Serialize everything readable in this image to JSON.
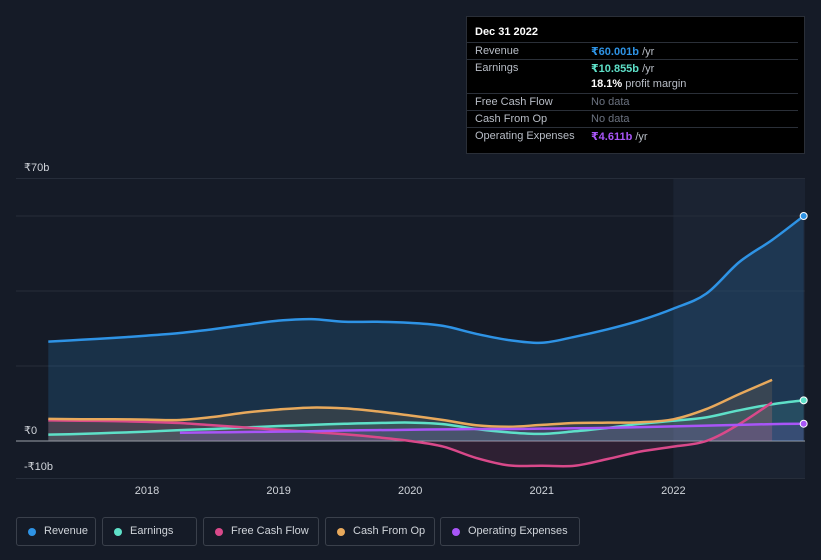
{
  "tooltip": {
    "date": "Dec 31 2022",
    "revenue": {
      "label": "Revenue",
      "value": "₹60.001b",
      "unit": "/yr",
      "color": "#2e93e5"
    },
    "earnings": {
      "label": "Earnings",
      "value": "₹10.855b",
      "unit": "/yr",
      "color": "#5ee0c8"
    },
    "margin": {
      "value": "18.1%",
      "text": "profit margin"
    },
    "fcf": {
      "label": "Free Cash Flow",
      "value": "No data"
    },
    "cfo": {
      "label": "Cash From Op",
      "value": "No data"
    },
    "opex": {
      "label": "Operating Expenses",
      "value": "₹4.611b",
      "unit": "/yr",
      "color": "#a855f7"
    }
  },
  "legend": [
    {
      "label": "Revenue",
      "color": "#2e93e5"
    },
    {
      "label": "Earnings",
      "color": "#5ee0c8"
    },
    {
      "label": "Free Cash Flow",
      "color": "#d9498a"
    },
    {
      "label": "Cash From Op",
      "color": "#e8a95c"
    },
    {
      "label": "Operating Expenses",
      "color": "#a855f7"
    }
  ],
  "chart_data": {
    "type": "line",
    "ylim": [
      -10,
      70
    ],
    "y_tick_labels": [
      {
        "label": "₹70b",
        "value": 70
      },
      {
        "label": "₹0",
        "value": 0
      },
      {
        "label": "-₹10b",
        "value": -10
      }
    ],
    "x_ticks": [
      2018,
      2019,
      2020,
      2021,
      2022
    ],
    "xlim": [
      2017.2,
      2023.0
    ],
    "highlight_start": 2022.0,
    "series": [
      {
        "name": "Revenue",
        "color": "#2e93e5",
        "area": true,
        "points": [
          [
            2017.25,
            26.5
          ],
          [
            2017.5,
            27
          ],
          [
            2017.75,
            27.5
          ],
          [
            2018.0,
            28.1
          ],
          [
            2018.25,
            28.8
          ],
          [
            2018.5,
            29.8
          ],
          [
            2018.75,
            31
          ],
          [
            2019.0,
            32.1
          ],
          [
            2019.25,
            32.5
          ],
          [
            2019.5,
            31.8
          ],
          [
            2019.75,
            31.8
          ],
          [
            2020.0,
            31.5
          ],
          [
            2020.25,
            30.7
          ],
          [
            2020.5,
            28.6
          ],
          [
            2020.75,
            26.9
          ],
          [
            2021.0,
            26.2
          ],
          [
            2021.25,
            27.8
          ],
          [
            2021.5,
            29.8
          ],
          [
            2021.75,
            32.2
          ],
          [
            2022.0,
            35.3
          ],
          [
            2022.25,
            39.3
          ],
          [
            2022.5,
            47.7
          ],
          [
            2022.75,
            53.6
          ],
          [
            2022.99,
            60.0
          ]
        ]
      },
      {
        "name": "Earnings",
        "color": "#5ee0c8",
        "points": [
          [
            2017.25,
            1.7
          ],
          [
            2017.5,
            1.9
          ],
          [
            2017.75,
            2.2
          ],
          [
            2018.0,
            2.5
          ],
          [
            2018.25,
            2.9
          ],
          [
            2018.5,
            3.2
          ],
          [
            2018.75,
            3.6
          ],
          [
            2019.0,
            4.0
          ],
          [
            2019.25,
            4.3
          ],
          [
            2019.5,
            4.6
          ],
          [
            2019.75,
            4.8
          ],
          [
            2020.0,
            4.9
          ],
          [
            2020.25,
            4.5
          ],
          [
            2020.5,
            3.2
          ],
          [
            2020.75,
            2.3
          ],
          [
            2021.0,
            1.9
          ],
          [
            2021.25,
            2.6
          ],
          [
            2021.5,
            3.5
          ],
          [
            2021.75,
            4.6
          ],
          [
            2022.0,
            5.4
          ],
          [
            2022.25,
            6.3
          ],
          [
            2022.5,
            8.2
          ],
          [
            2022.75,
            9.8
          ],
          [
            2022.99,
            10.85
          ]
        ]
      },
      {
        "name": "Free Cash Flow",
        "color": "#d9498a",
        "points": [
          [
            2017.25,
            5.5
          ],
          [
            2017.5,
            5.4
          ],
          [
            2017.75,
            5.3
          ],
          [
            2018.0,
            5.1
          ],
          [
            2018.25,
            4.8
          ],
          [
            2018.5,
            4.2
          ],
          [
            2018.75,
            3.6
          ],
          [
            2019.0,
            3.0
          ],
          [
            2019.25,
            2.4
          ],
          [
            2019.5,
            1.8
          ],
          [
            2019.75,
            1.0
          ],
          [
            2020.0,
            0.0
          ],
          [
            2020.25,
            -1.5
          ],
          [
            2020.5,
            -4.5
          ],
          [
            2020.75,
            -6.5
          ],
          [
            2021.0,
            -6.6
          ],
          [
            2021.25,
            -6.6
          ],
          [
            2021.5,
            -4.8
          ],
          [
            2021.75,
            -2.8
          ],
          [
            2022.0,
            -1.5
          ],
          [
            2022.25,
            0.0
          ],
          [
            2022.5,
            4.5
          ],
          [
            2022.75,
            10.3
          ]
        ]
      },
      {
        "name": "Cash From Op",
        "color": "#e8a95c",
        "points": [
          [
            2017.25,
            5.9
          ],
          [
            2017.5,
            5.8
          ],
          [
            2017.75,
            5.8
          ],
          [
            2018.0,
            5.7
          ],
          [
            2018.25,
            5.6
          ],
          [
            2018.5,
            6.4
          ],
          [
            2018.75,
            7.6
          ],
          [
            2019.0,
            8.4
          ],
          [
            2019.25,
            8.9
          ],
          [
            2019.5,
            8.7
          ],
          [
            2019.75,
            7.9
          ],
          [
            2020.0,
            6.8
          ],
          [
            2020.25,
            5.6
          ],
          [
            2020.5,
            4.2
          ],
          [
            2020.75,
            3.8
          ],
          [
            2021.0,
            4.3
          ],
          [
            2021.25,
            4.8
          ],
          [
            2021.5,
            4.9
          ],
          [
            2021.75,
            5.0
          ],
          [
            2022.0,
            5.8
          ],
          [
            2022.25,
            8.5
          ],
          [
            2022.5,
            12.5
          ],
          [
            2022.75,
            16.3
          ]
        ]
      },
      {
        "name": "Operating Expenses",
        "color": "#a855f7",
        "points": [
          [
            2018.25,
            2.2
          ],
          [
            2018.5,
            2.3
          ],
          [
            2018.75,
            2.4
          ],
          [
            2019.0,
            2.5
          ],
          [
            2019.25,
            2.6
          ],
          [
            2019.5,
            2.8
          ],
          [
            2019.75,
            2.9
          ],
          [
            2020.0,
            3.0
          ],
          [
            2020.25,
            3.1
          ],
          [
            2020.5,
            3.2
          ],
          [
            2020.75,
            3.2
          ],
          [
            2021.0,
            3.3
          ],
          [
            2021.25,
            3.4
          ],
          [
            2021.5,
            3.5
          ],
          [
            2021.75,
            3.7
          ],
          [
            2022.0,
            3.9
          ],
          [
            2022.25,
            4.1
          ],
          [
            2022.5,
            4.3
          ],
          [
            2022.75,
            4.5
          ],
          [
            2022.99,
            4.61
          ]
        ]
      }
    ]
  }
}
